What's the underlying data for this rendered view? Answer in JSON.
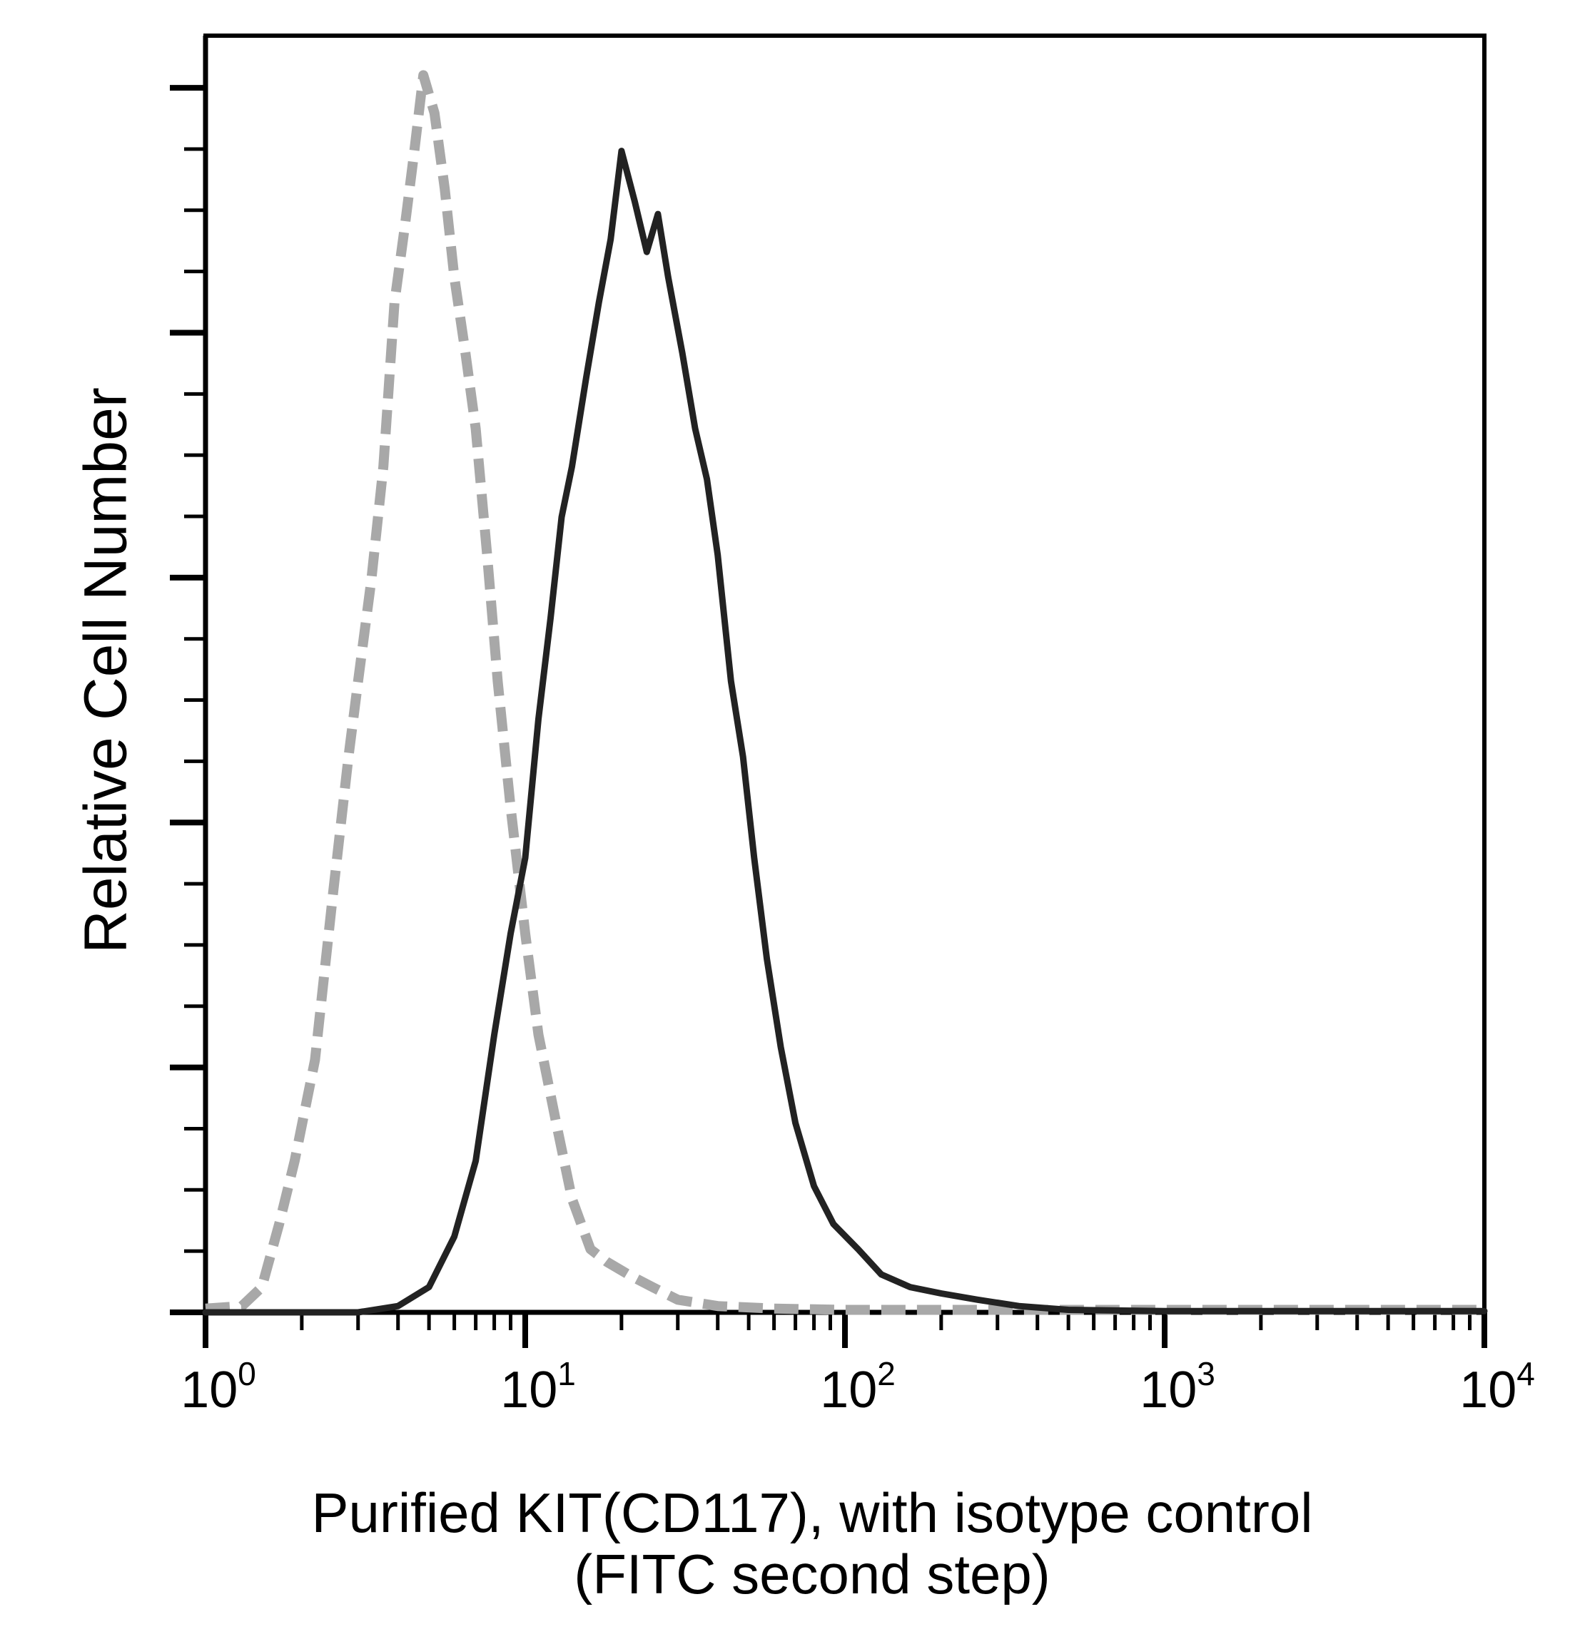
{
  "chart_data": {
    "type": "line",
    "title": "",
    "ylabel": "Relative Cell Number",
    "xlabel": [
      "Purified KIT(CD117), with isotype control",
      "(FITC second step)"
    ],
    "x_scale": "log",
    "xlim": [
      1,
      10000
    ],
    "ylim": [
      0,
      100
    ],
    "x_ticks": [
      {
        "value": 1,
        "base": "10",
        "exp": "0"
      },
      {
        "value": 10,
        "base": "10",
        "exp": "1"
      },
      {
        "value": 100,
        "base": "10",
        "exp": "2"
      },
      {
        "value": 1000,
        "base": "10",
        "exp": "3"
      },
      {
        "value": 10000,
        "base": "10",
        "exp": "4"
      }
    ],
    "y_tick_labels": "none",
    "grid": false,
    "legend": "none",
    "series": [
      {
        "style": "dashed",
        "color": "#a8a8a8",
        "x": [
          1.0,
          1.3,
          1.5,
          1.7,
          1.9,
          2.2,
          2.5,
          2.8,
          3.0,
          3.3,
          3.6,
          3.9,
          4.2,
          4.5,
          4.8,
          5.2,
          5.6,
          6.0,
          6.5,
          7.0,
          7.6,
          8.2,
          9.0,
          10.0,
          11.0,
          12.5,
          14.0,
          16.0,
          18.0,
          21.0,
          25.0,
          30.0,
          40.0,
          60.0,
          100.0,
          10000.0
        ],
        "y": [
          0.3,
          0.5,
          2.0,
          7.0,
          12.0,
          20.0,
          33.0,
          44.0,
          50.0,
          58.0,
          67.0,
          80.0,
          86.0,
          92.0,
          98.0,
          95.0,
          89.0,
          82.0,
          76.0,
          70.0,
          60.0,
          50.0,
          40.0,
          30.0,
          22.0,
          15.0,
          9.0,
          5.0,
          4.0,
          3.0,
          2.0,
          1.0,
          0.5,
          0.3,
          0.2,
          0.2
        ]
      },
      {
        "style": "solid",
        "color": "#222222",
        "x": [
          1.0,
          3.0,
          4.0,
          5.0,
          6.0,
          7.0,
          8.0,
          9.0,
          10.0,
          11.0,
          12.0,
          13.0,
          14.0,
          15.5,
          17.0,
          18.5,
          20.0,
          22.0,
          24.0,
          26.0,
          28.0,
          31.0,
          34.0,
          37.0,
          40.0,
          44.0,
          48.0,
          52.0,
          57.0,
          63.0,
          70.0,
          80.0,
          92.0,
          110.0,
          130.0,
          160.0,
          200.0,
          260.0,
          350.0,
          500.0,
          1000.0,
          10000.0
        ],
        "y": [
          0.0,
          0.0,
          0.5,
          2.0,
          6.0,
          12.0,
          22.0,
          30.0,
          36.0,
          47.0,
          55.0,
          63.0,
          67.0,
          74.0,
          80.0,
          85.0,
          92.0,
          88.0,
          84.0,
          87.0,
          82.0,
          76.0,
          70.0,
          66.0,
          60.0,
          50.0,
          44.0,
          36.0,
          28.0,
          21.0,
          15.0,
          10.0,
          7.0,
          5.0,
          3.0,
          2.0,
          1.5,
          1.0,
          0.5,
          0.2,
          0.1,
          0.1
        ]
      }
    ]
  }
}
